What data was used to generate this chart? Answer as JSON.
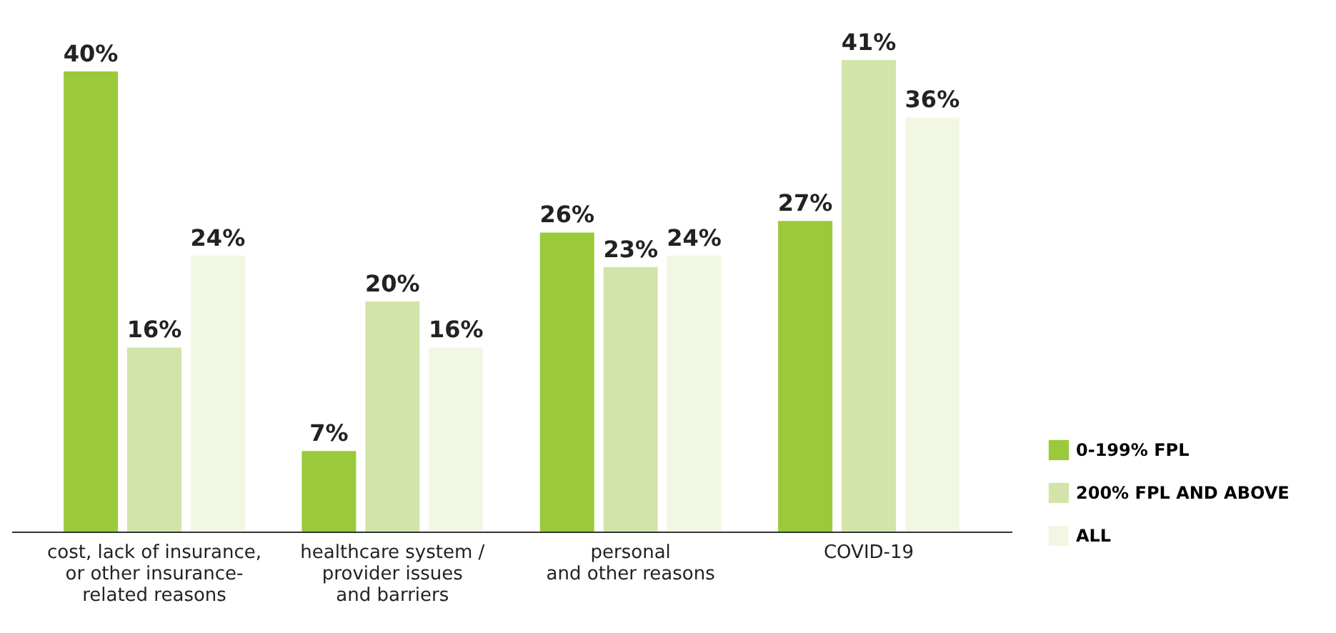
{
  "chart_data": {
    "type": "bar",
    "categories": [
      "cost, lack of insurance,\nor other insurance-\nrelated reasons",
      "healthcare system /\nprovider issues\nand barriers",
      "personal\nand other reasons",
      "COVID-19"
    ],
    "series": [
      {
        "name": "0-199% FPL",
        "color": "#9aca3c",
        "values": [
          40,
          7,
          26,
          27
        ],
        "value_labels": [
          "40%",
          "7%",
          "26%",
          "27%"
        ]
      },
      {
        "name": "200% FPL AND ABOVE",
        "color": "#d2e4a8",
        "values": [
          16,
          20,
          23,
          41
        ],
        "value_labels": [
          "16%",
          "20%",
          "23%",
          "41%"
        ]
      },
      {
        "name": "ALL",
        "color": "#f2f7e4",
        "values": [
          24,
          16,
          24,
          36
        ],
        "value_labels": [
          "24%",
          "16%",
          "24%",
          "36%"
        ]
      }
    ],
    "legend": "right",
    "grid": false
  }
}
